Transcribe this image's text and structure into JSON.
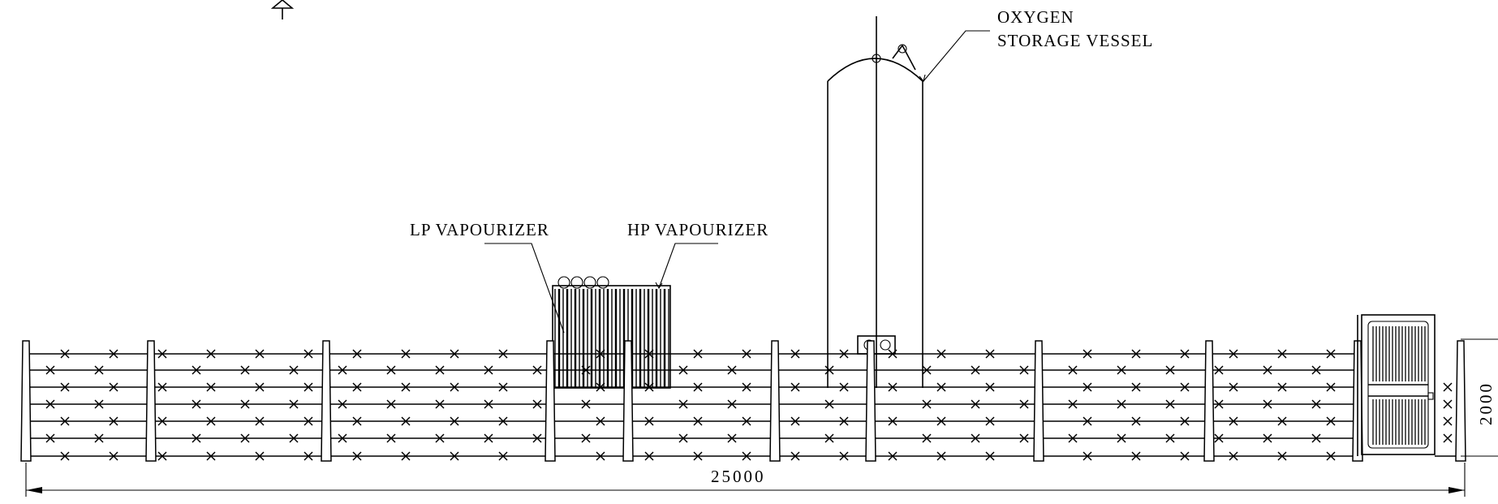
{
  "labels": {
    "oxygen_line1": "OXYGEN",
    "oxygen_line2": "STORAGE VESSEL",
    "lp_vapourizer": "LP VAPOURIZER",
    "hp_vapourizer": "HP VAPOURIZER"
  },
  "dimensions": {
    "total_length": "25000",
    "fence_height": "2000"
  }
}
